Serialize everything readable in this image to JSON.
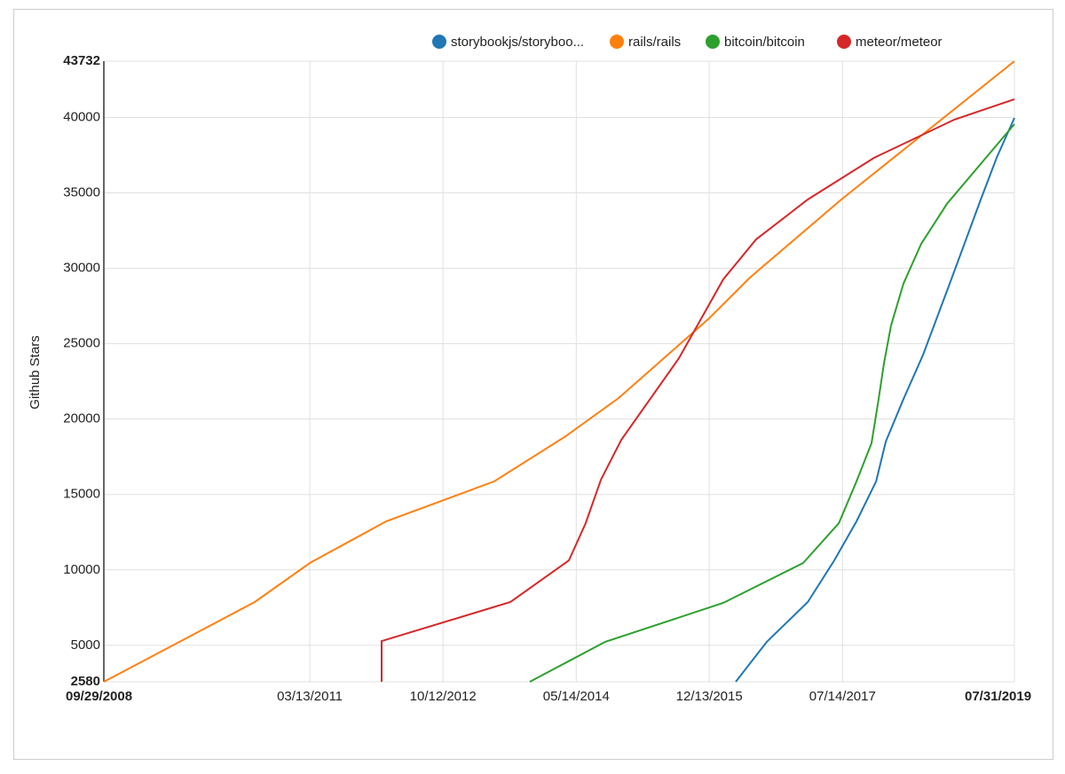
{
  "chart_data": {
    "type": "line",
    "y_label": "Github Stars",
    "xlim": [
      "09/29/2008",
      "07/31/2019"
    ],
    "xticks": [
      "09/29/2008",
      "03/13/2011",
      "10/12/2012",
      "05/14/2014",
      "12/13/2015",
      "07/14/2017",
      "07/31/2019"
    ],
    "ylim": [
      2580,
      43732
    ],
    "yticks": [
      2580,
      5000,
      10000,
      15000,
      20000,
      25000,
      30000,
      35000,
      40000,
      43732
    ],
    "grid": true,
    "legend": "top",
    "series": [
      {
        "name": "storybookjs/storyboo...",
        "color": "#1f77b4",
        "x": [
          "04/06/2016",
          "08/19/2016",
          "02/13/2017",
          "06/08/2017",
          "09/13/2017",
          "12/07/2017",
          "01/18/2018",
          "04/05/2018",
          "06/29/2018",
          "10/23/2018",
          "03/07/2019",
          "05/15/2019",
          "07/31/2019"
        ],
        "values": [
          2580,
          5230,
          7870,
          10630,
          13220,
          15870,
          18510,
          21330,
          24270,
          28980,
          34560,
          37330,
          39970
        ]
      },
      {
        "name": "rails/rails",
        "color": "#ff7f0e",
        "x": [
          "09/29/2008",
          "07/17/2010",
          "03/13/2011",
          "02/08/2012",
          "05/23/2013",
          "03/24/2014",
          "11/14/2014",
          "12/09/2015",
          "06/07/2016",
          "07/09/2017",
          "07/31/2019"
        ],
        "values": [
          2580,
          7870,
          10460,
          13220,
          15870,
          18810,
          21390,
          26630,
          29390,
          34560,
          43732
        ]
      },
      {
        "name": "bitcoin/bitcoin",
        "color": "#2ca02c",
        "x": [
          "10/24/2013",
          "09/17/2014",
          "02/12/2016",
          "01/24/2017",
          "06/28/2017",
          "09/13/2017",
          "11/17/2017",
          "12/18/2017",
          "01/10/2018",
          "02/10/2018",
          "04/05/2018",
          "06/21/2018",
          "10/11/2018",
          "07/31/2019"
        ],
        "values": [
          2580,
          5230,
          7810,
          10460,
          13100,
          15870,
          18400,
          21330,
          23690,
          26210,
          28980,
          31620,
          34270,
          39560
        ]
      },
      {
        "name": "meteor/meteor",
        "color": "#d62728",
        "x": [
          "01/19/2012",
          "01/19/2012",
          "08/01/2013",
          "04/12/2014",
          "06/24/2014",
          "08/29/2014",
          "11/26/2014",
          "08/03/2015",
          "02/12/2016",
          "07/04/2016",
          "02/13/2017",
          "11/29/2017",
          "11/11/2018",
          "07/31/2019"
        ],
        "values": [
          2580,
          5280,
          7870,
          10630,
          13100,
          15980,
          18630,
          24040,
          29270,
          31920,
          34560,
          37330,
          39850,
          41210
        ]
      }
    ]
  }
}
